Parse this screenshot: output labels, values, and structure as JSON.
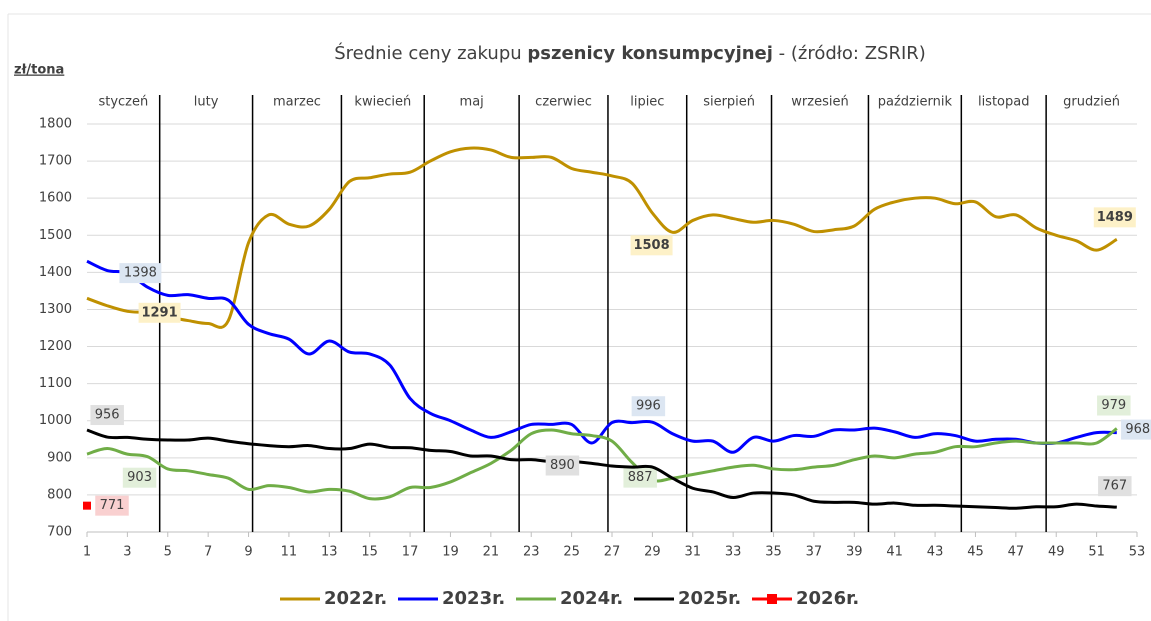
{
  "chart_data": {
    "type": "line",
    "title": [
      "Średnie ceny zakupu ",
      "pszenicy konsumpcyjnej",
      " - (źródło: ZSRIR)"
    ],
    "y_label": "zł/tona",
    "months": [
      "styczeń",
      "luty",
      "marzec",
      "kwiecień",
      "maj",
      "czerwiec",
      "lipiec",
      "sierpień",
      "wrzesień",
      "październik",
      "listopad",
      "grudzień"
    ],
    "month_dividers": [
      4.6,
      9.2,
      13.6,
      17.7,
      22.4,
      26.8,
      30.7,
      34.9,
      39.7,
      44.3,
      48.5
    ],
    "x": [
      1,
      2,
      3,
      4,
      5,
      6,
      7,
      8,
      9,
      10,
      11,
      12,
      13,
      14,
      15,
      16,
      17,
      18,
      19,
      20,
      21,
      22,
      23,
      24,
      25,
      26,
      27,
      28,
      29,
      30,
      31,
      32,
      33,
      34,
      35,
      36,
      37,
      38,
      39,
      40,
      41,
      42,
      43,
      44,
      45,
      46,
      47,
      48,
      49,
      50,
      51,
      52
    ],
    "xlim": [
      1,
      53
    ],
    "xticks": [
      1,
      3,
      5,
      7,
      9,
      11,
      13,
      15,
      17,
      19,
      21,
      23,
      25,
      27,
      29,
      31,
      33,
      35,
      37,
      39,
      41,
      43,
      45,
      47,
      49,
      51,
      53
    ],
    "ylim": [
      700,
      1800
    ],
    "yticks": [
      700,
      800,
      900,
      1000,
      1100,
      1200,
      1300,
      1400,
      1500,
      1600,
      1700,
      1800
    ],
    "grid": true,
    "series": [
      {
        "name": "2022r.",
        "color": "#bf9000",
        "label_bg": "#fdf1c8",
        "label_text": "#000000",
        "values": [
          1330,
          1310,
          1295,
          1291,
          1280,
          1270,
          1262,
          1270,
          1480,
          1555,
          1530,
          1525,
          1570,
          1645,
          1655,
          1665,
          1670,
          1700,
          1725,
          1735,
          1730,
          1710,
          1710,
          1710,
          1680,
          1670,
          1660,
          1640,
          1560,
          1508,
          1540,
          1555,
          1545,
          1535,
          1540,
          1530,
          1510,
          1515,
          1525,
          1570,
          1590,
          1600,
          1600,
          1585,
          1590,
          1550,
          1555,
          1520,
          1500,
          1485,
          1460,
          1489
        ],
        "value_labels": [
          null,
          null,
          null,
          "1291",
          null,
          null,
          null,
          null,
          null,
          null,
          null,
          null,
          null,
          null,
          null,
          null,
          null,
          null,
          null,
          null,
          null,
          null,
          null,
          null,
          null,
          null,
          null,
          null,
          null,
          "1508",
          null,
          null,
          null,
          null,
          null,
          null,
          null,
          null,
          null,
          null,
          null,
          null,
          null,
          null,
          null,
          null,
          null,
          null,
          null,
          null,
          null,
          "1489"
        ]
      },
      {
        "name": "2023r.",
        "color": "#0000ff",
        "label_bg": "#dce6f2",
        "label_text": "#404040",
        "values": [
          1430,
          1405,
          1398,
          1360,
          1338,
          1340,
          1330,
          1325,
          1260,
          1235,
          1220,
          1180,
          1215,
          1185,
          1180,
          1150,
          1060,
          1020,
          1000,
          975,
          955,
          970,
          990,
          990,
          990,
          940,
          995,
          995,
          996,
          965,
          945,
          945,
          915,
          955,
          945,
          960,
          958,
          975,
          975,
          980,
          970,
          955,
          965,
          960,
          945,
          950,
          950,
          940,
          940,
          955,
          968,
          968
        ],
        "value_labels": [
          null,
          null,
          "1398",
          null,
          null,
          null,
          null,
          null,
          null,
          null,
          null,
          null,
          null,
          null,
          null,
          null,
          null,
          null,
          null,
          null,
          null,
          null,
          null,
          null,
          null,
          null,
          null,
          null,
          "996",
          null,
          null,
          null,
          null,
          null,
          null,
          null,
          null,
          null,
          null,
          null,
          null,
          null,
          null,
          null,
          null,
          null,
          null,
          null,
          null,
          null,
          null,
          "968"
        ]
      },
      {
        "name": "2024r.",
        "color": "#70ad47",
        "label_bg": "#e2efda",
        "label_text": "#404040",
        "values": [
          910,
          925,
          910,
          903,
          870,
          865,
          855,
          845,
          815,
          825,
          820,
          808,
          815,
          810,
          790,
          795,
          820,
          820,
          835,
          860,
          885,
          920,
          965,
          975,
          965,
          960,
          945,
          887,
          840,
          845,
          855,
          865,
          875,
          880,
          870,
          868,
          875,
          880,
          895,
          905,
          900,
          910,
          915,
          930,
          930,
          940,
          945,
          940,
          940,
          940,
          940,
          979
        ],
        "value_labels": [
          null,
          null,
          null,
          "903",
          null,
          null,
          null,
          null,
          null,
          null,
          null,
          null,
          null,
          null,
          null,
          null,
          null,
          null,
          null,
          null,
          null,
          null,
          null,
          null,
          null,
          null,
          null,
          "887",
          null,
          null,
          null,
          null,
          null,
          null,
          null,
          null,
          null,
          null,
          null,
          null,
          null,
          null,
          null,
          null,
          null,
          null,
          null,
          null,
          null,
          null,
          null,
          "979"
        ]
      },
      {
        "name": "2025r.",
        "color": "#000000",
        "label_bg": "#e0e0e0",
        "label_text": "#404040",
        "values": [
          975,
          956,
          955,
          950,
          948,
          948,
          953,
          945,
          938,
          933,
          930,
          933,
          925,
          925,
          937,
          928,
          927,
          920,
          917,
          905,
          905,
          895,
          895,
          890,
          890,
          885,
          878,
          875,
          875,
          845,
          818,
          808,
          793,
          805,
          805,
          800,
          783,
          780,
          780,
          775,
          778,
          772,
          772,
          770,
          768,
          766,
          764,
          768,
          768,
          775,
          770,
          767
        ],
        "value_labels": [
          null,
          "956",
          null,
          null,
          null,
          null,
          null,
          null,
          null,
          null,
          null,
          null,
          null,
          null,
          null,
          null,
          null,
          null,
          null,
          null,
          null,
          null,
          null,
          "890",
          null,
          null,
          null,
          null,
          null,
          null,
          null,
          null,
          null,
          null,
          null,
          null,
          null,
          null,
          null,
          null,
          null,
          null,
          null,
          null,
          null,
          null,
          null,
          null,
          null,
          null,
          null,
          "767"
        ]
      },
      {
        "name": "2026r.",
        "color": "#ff0000",
        "label_bg": "#f9d0d0",
        "label_text": "#c0504d",
        "marker": "square",
        "values": [
          771,
          null,
          null,
          null,
          null,
          null,
          null,
          null,
          null,
          null,
          null,
          null,
          null,
          null,
          null,
          null,
          null,
          null,
          null,
          null,
          null,
          null,
          null,
          null,
          null,
          null,
          null,
          null,
          null,
          null,
          null,
          null,
          null,
          null,
          null,
          null,
          null,
          null,
          null,
          null,
          null,
          null,
          null,
          null,
          null,
          null,
          null,
          null,
          null,
          null,
          null,
          null
        ],
        "value_labels": [
          "771",
          null,
          null,
          null,
          null,
          null,
          null,
          null,
          null,
          null,
          null,
          null,
          null,
          null,
          null,
          null,
          null,
          null,
          null,
          null,
          null,
          null,
          null,
          null,
          null,
          null,
          null,
          null,
          null,
          null,
          null,
          null,
          null,
          null,
          null,
          null,
          null,
          null,
          null,
          null,
          null,
          null,
          null,
          null,
          null,
          null,
          null,
          null,
          null,
          null,
          null,
          null
        ]
      }
    ]
  }
}
